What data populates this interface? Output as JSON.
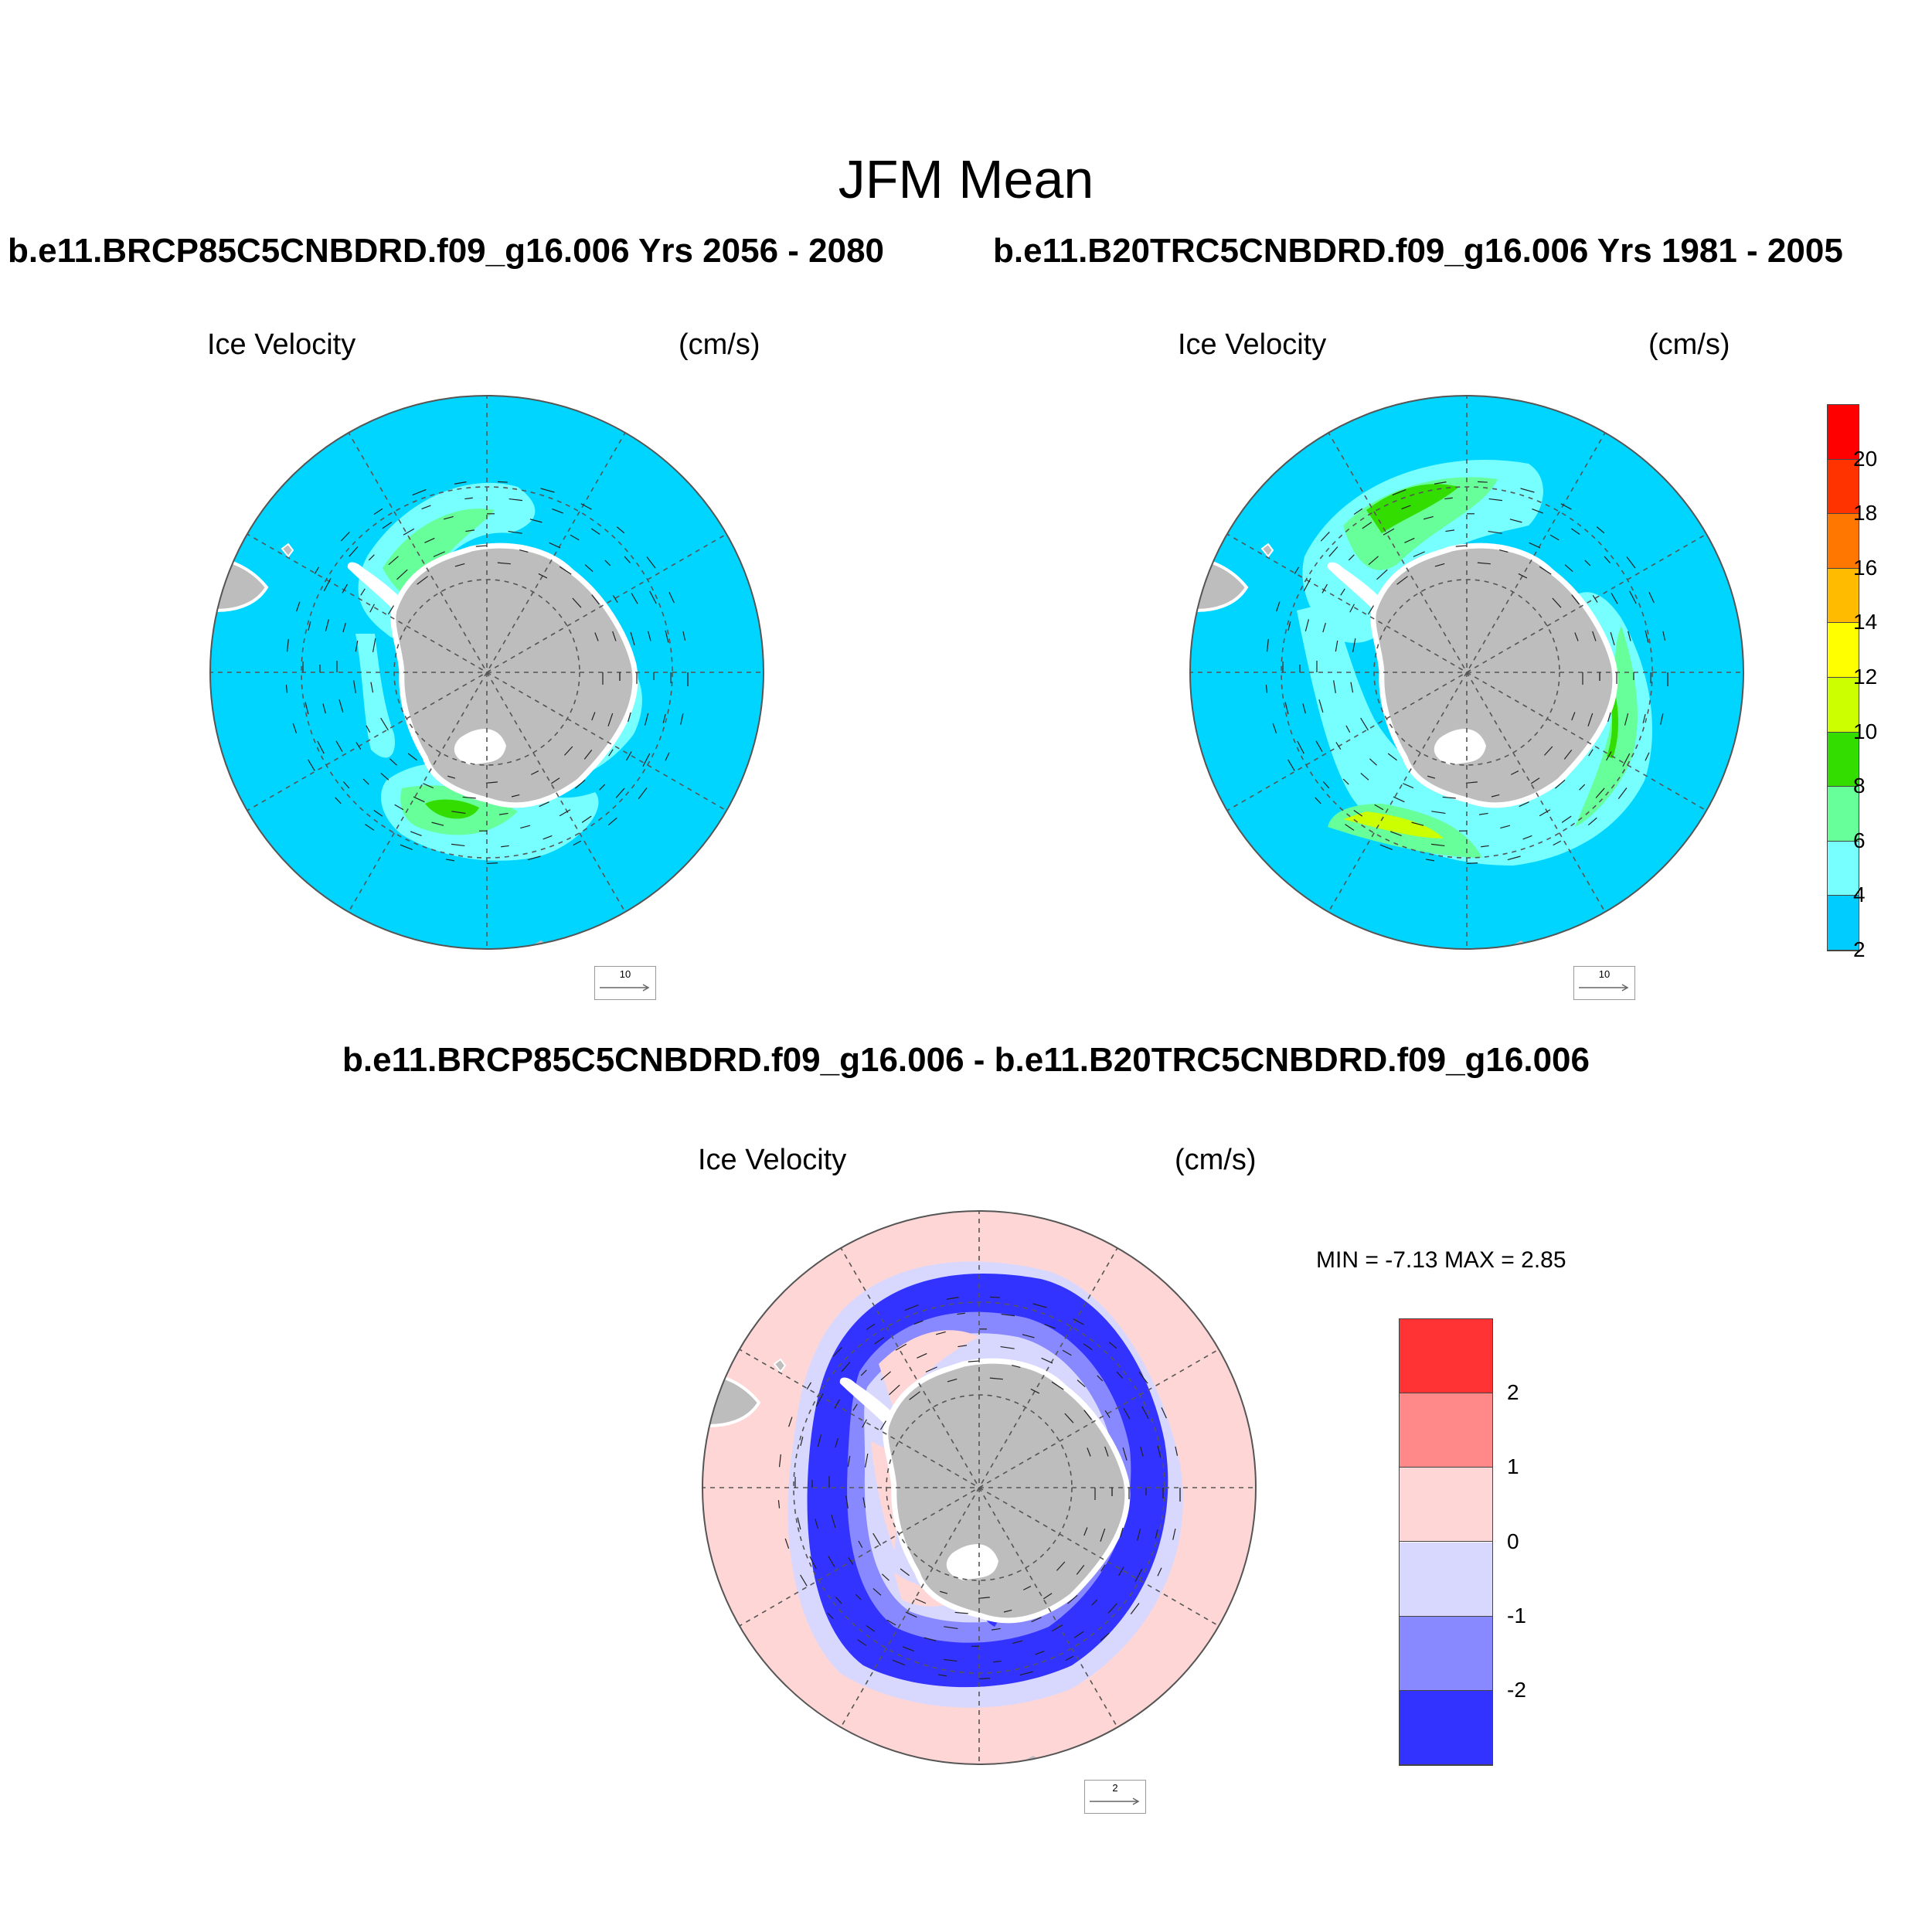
{
  "title": "JFM Mean",
  "panels": {
    "left": {
      "case_title": "b.e11.BRCP85C5CNBDRD.f09_g16.006  Yrs 2056 - 2080",
      "variable": "Ice Velocity",
      "units": "(cm/s)",
      "ref_vector": "10"
    },
    "right": {
      "case_title": "b.e11.B20TRC5CNBDRD.f09_g16.006  Yrs 1981 - 2005",
      "variable": "Ice Velocity",
      "units": "(cm/s)",
      "ref_vector": "10"
    },
    "diff": {
      "case_title": "b.e11.BRCP85C5CNBDRD.f09_g16.006 - b.e11.B20TRC5CNBDRD.f09_g16.006",
      "variable": "Ice Velocity",
      "units": "(cm/s)",
      "min_label": "MIN =",
      "min_value": "-7.13",
      "max_label": "MAX =",
      "max_value": "2.85",
      "ref_vector": "2"
    }
  },
  "colorbars": {
    "speed": {
      "labels": [
        "20",
        "18",
        "16",
        "14",
        "12",
        "10",
        "8",
        "6",
        "4",
        "2"
      ],
      "colors": [
        "#ff0000",
        "#ff3300",
        "#ff7700",
        "#ffbb00",
        "#ffff00",
        "#ccff00",
        "#33dd00",
        "#66ff99",
        "#77ffff",
        "#00ccff"
      ]
    },
    "diff": {
      "labels": [
        "2",
        "1",
        "0",
        "-1",
        "-2"
      ],
      "colors": [
        "#ff3333",
        "#ff8888",
        "#ffd6d6",
        "#d8d8ff",
        "#8888ff",
        "#3333ff"
      ]
    }
  },
  "map_colors": {
    "ocean_speed": "#00d5ff",
    "ocean_diff": "#ffd6d6",
    "land": "#bdbdbd",
    "ice_shelf": "#ffffff"
  }
}
